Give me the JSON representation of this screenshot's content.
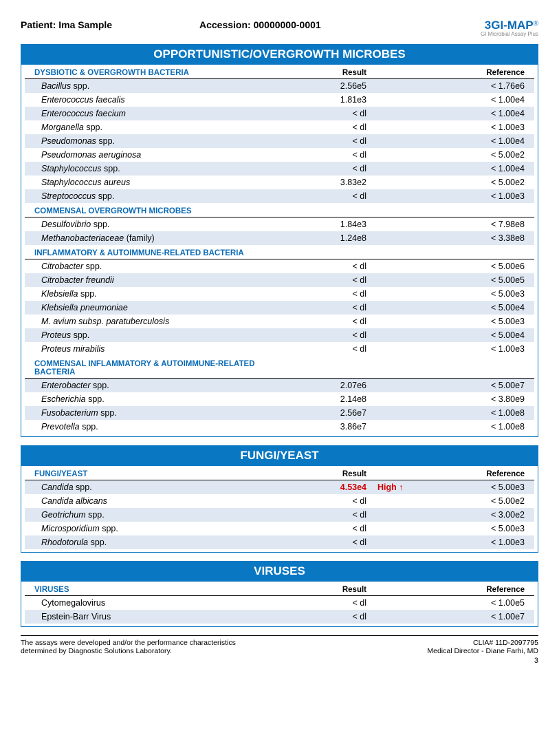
{
  "header": {
    "patient_label": "Patient:",
    "patient_name": "Ima Sample",
    "accession_label": "Accession:",
    "accession_value": "00000000-0001",
    "logo_text": "GI-MAP",
    "logo_prefix": "3",
    "logo_reg": "®",
    "logo_sub": "GI Microbial Assay Plus"
  },
  "col_result": "Result",
  "col_reference": "Reference",
  "panels": [
    {
      "title": "OPPORTUNISTIC/OVERGROWTH MICROBES",
      "groups": [
        {
          "label": "DYSBIOTIC & OVERGROWTH BACTERIA",
          "show_cols": true,
          "rows": [
            {
              "name_i": "Bacillus",
              "name_r": " spp.",
              "result": "2.56e5",
              "ref": "< 1.76e6",
              "alt": true
            },
            {
              "name_i": "Enterococcus faecalis",
              "name_r": "",
              "result": "1.81e3",
              "ref": "< 1.00e4",
              "alt": false
            },
            {
              "name_i": "Enterococcus faecium",
              "name_r": "",
              "result": "< dl",
              "ref": "< 1.00e4",
              "alt": true
            },
            {
              "name_i": "Morganella ",
              "name_r": " spp.",
              "result": "< dl",
              "ref": "< 1.00e3",
              "alt": false
            },
            {
              "name_i": "Pseudomonas",
              "name_r": " spp.",
              "result": "< dl",
              "ref": "< 1.00e4",
              "alt": true
            },
            {
              "name_i": "Pseudomonas aeruginosa",
              "name_r": "",
              "result": "< dl",
              "ref": "< 5.00e2",
              "alt": false
            },
            {
              "name_i": "Staphylococcus",
              "name_r": " spp.",
              "result": "< dl",
              "ref": "< 1.00e4",
              "alt": true
            },
            {
              "name_i": "Staphylococcus aureus",
              "name_r": "",
              "result": "3.83e2",
              "ref": "< 5.00e2",
              "alt": false
            },
            {
              "name_i": "Streptococcus",
              "name_r": " spp.",
              "result": "< dl",
              "ref": "< 1.00e3",
              "alt": true
            }
          ]
        },
        {
          "label": "COMMENSAL OVERGROWTH MICROBES",
          "show_cols": false,
          "rows": [
            {
              "name_i": "Desulfovibrio",
              "name_r": " spp.",
              "result": "1.84e3",
              "ref": "< 7.98e8",
              "alt": false
            },
            {
              "name_i": "Methanobacteriaceae",
              "name_r": " (family)",
              "result": "1.24e8",
              "ref": "< 3.38e8",
              "alt": true
            }
          ]
        },
        {
          "label": "INFLAMMATORY & AUTOIMMUNE-RELATED BACTERIA",
          "show_cols": false,
          "rows": [
            {
              "name_i": "Citrobacter",
              "name_r": " spp.",
              "result": "< dl",
              "ref": "< 5.00e6",
              "alt": false
            },
            {
              "name_i": "Citrobacter freundii",
              "name_r": "",
              "result": "< dl",
              "ref": "< 5.00e5",
              "alt": true
            },
            {
              "name_i": "Klebsiella",
              "name_r": " spp.",
              "result": "< dl",
              "ref": "< 5.00e3",
              "alt": false
            },
            {
              "name_i": "Klebsiella pneumoniae",
              "name_r": "",
              "result": "< dl",
              "ref": "< 5.00e4",
              "alt": true
            },
            {
              "name_i": "M. avium subsp. paratuberculosis",
              "name_r": "",
              "result": "< dl",
              "ref": "< 5.00e3",
              "alt": false
            },
            {
              "name_i": "Proteus",
              "name_r": " spp.",
              "result": "< dl",
              "ref": "< 5.00e4",
              "alt": true
            },
            {
              "name_i": "Proteus mirabilis",
              "name_r": "",
              "result": "< dl",
              "ref": "< 1.00e3",
              "alt": false
            }
          ]
        },
        {
          "label": "COMMENSAL INFLAMMATORY & AUTOIMMUNE-RELATED BACTERIA",
          "show_cols": false,
          "rows": [
            {
              "name_i": "Enterobacter",
              "name_r": " spp.",
              "result": "2.07e6",
              "ref": "< 5.00e7",
              "alt": true
            },
            {
              "name_i": "Escherichia",
              "name_r": " spp.",
              "result": "2.14e8",
              "ref": "< 3.80e9",
              "alt": false
            },
            {
              "name_i": "Fusobacterium",
              "name_r": " spp.",
              "result": "2.56e7",
              "ref": "< 1.00e8",
              "alt": true
            },
            {
              "name_i": "Prevotella",
              "name_r": " spp.",
              "result": "3.86e7",
              "ref": "< 1.00e8",
              "alt": false
            }
          ]
        }
      ]
    },
    {
      "title": "FUNGI/YEAST",
      "groups": [
        {
          "label": "FUNGI/YEAST",
          "show_cols": true,
          "rows": [
            {
              "name_i": "Candida",
              "name_r": " spp.",
              "result": "4.53e4",
              "flag": "High ↑",
              "ref": "< 5.00e3",
              "alt": true,
              "high": true
            },
            {
              "name_i": "Candida albicans",
              "name_r": "",
              "result": "< dl",
              "ref": "< 5.00e2",
              "alt": false
            },
            {
              "name_i": "Geotrichum",
              "name_r": " spp.",
              "result": "< dl",
              "ref": "< 3.00e2",
              "alt": true
            },
            {
              "name_i": "Microsporidium",
              "name_r": " spp.",
              "result": "< dl",
              "ref": "< 5.00e3",
              "alt": false
            },
            {
              "name_i": "Rhodotorula",
              "name_r": " spp.",
              "result": "< dl",
              "ref": "< 1.00e3",
              "alt": true
            }
          ]
        }
      ]
    },
    {
      "title": "VIRUSES",
      "groups": [
        {
          "label": "VIRUSES",
          "show_cols": true,
          "rows": [
            {
              "name_i": "",
              "name_r": "Cytomegalovirus",
              "result": "< dl",
              "ref": "< 1.00e5",
              "alt": false
            },
            {
              "name_i": "",
              "name_r": "Epstein-Barr Virus",
              "result": "< dl",
              "ref": "< 1.00e7",
              "alt": true
            }
          ]
        }
      ]
    }
  ],
  "footer": {
    "left1": "The assays were developed and/or the performance characteristics",
    "left2": "determined by Diagnostic Solutions Laboratory.",
    "right1": "CLIA# 11D-2097795",
    "right2": "Medical Director - Diane Farhi, MD",
    "page": "3"
  }
}
